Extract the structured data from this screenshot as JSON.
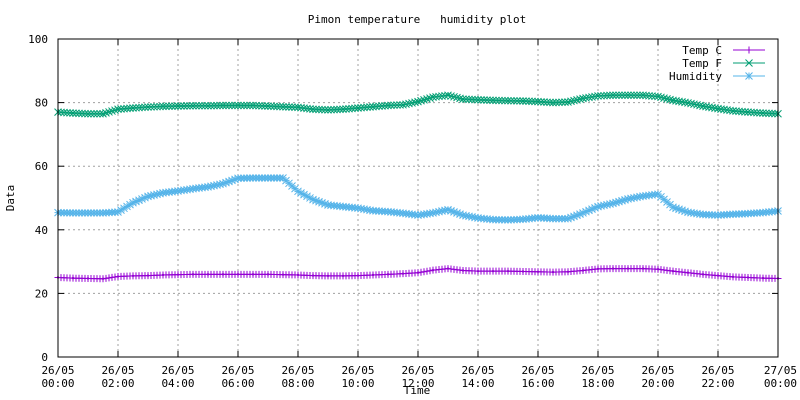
{
  "chart_data": {
    "type": "line",
    "title": "Pimon temperature   humidity plot",
    "xlabel": "Time",
    "ylabel": "Data",
    "xlim": [
      "26/05 00:00",
      "27/05 00:00"
    ],
    "ylim": [
      0,
      100
    ],
    "grid": true,
    "legend_position": "top-right",
    "x_ticks": [
      {
        "d": "26/05",
        "t": "00:00"
      },
      {
        "d": "26/05",
        "t": "02:00"
      },
      {
        "d": "26/05",
        "t": "04:00"
      },
      {
        "d": "26/05",
        "t": "06:00"
      },
      {
        "d": "26/05",
        "t": "08:00"
      },
      {
        "d": "26/05",
        "t": "10:00"
      },
      {
        "d": "26/05",
        "t": "12:00"
      },
      {
        "d": "26/05",
        "t": "14:00"
      },
      {
        "d": "26/05",
        "t": "16:00"
      },
      {
        "d": "26/05",
        "t": "18:00"
      },
      {
        "d": "26/05",
        "t": "20:00"
      },
      {
        "d": "26/05",
        "t": "22:00"
      },
      {
        "d": "27/05",
        "t": "00:00"
      }
    ],
    "y_ticks": [
      0,
      20,
      40,
      60,
      80,
      100
    ],
    "x": [
      "26/05 00:00",
      "26/05 00:30",
      "26/05 01:00",
      "26/05 01:30",
      "26/05 02:00",
      "26/05 02:30",
      "26/05 03:00",
      "26/05 03:30",
      "26/05 04:00",
      "26/05 04:30",
      "26/05 05:00",
      "26/05 05:30",
      "26/05 06:00",
      "26/05 06:30",
      "26/05 07:00",
      "26/05 07:30",
      "26/05 08:00",
      "26/05 08:30",
      "26/05 09:00",
      "26/05 09:30",
      "26/05 10:00",
      "26/05 10:30",
      "26/05 11:00",
      "26/05 11:30",
      "26/05 12:00",
      "26/05 12:30",
      "26/05 13:00",
      "26/05 13:30",
      "26/05 14:00",
      "26/05 14:30",
      "26/05 15:00",
      "26/05 15:30",
      "26/05 16:00",
      "26/05 16:30",
      "26/05 17:00",
      "26/05 17:30",
      "26/05 18:00",
      "26/05 18:30",
      "26/05 19:00",
      "26/05 19:30",
      "26/05 20:00",
      "26/05 20:30",
      "26/05 21:00",
      "26/05 21:30",
      "26/05 22:00",
      "26/05 22:30",
      "26/05 23:00",
      "26/05 23:30",
      "27/05 00:00"
    ],
    "series": [
      {
        "name": "Temp C",
        "color": "#9400d3",
        "marker": "plus",
        "values": [
          25.0,
          24.8,
          24.7,
          24.6,
          25.3,
          25.5,
          25.6,
          25.8,
          25.9,
          26.0,
          26.0,
          26.0,
          26.0,
          26.0,
          26.0,
          25.9,
          25.8,
          25.6,
          25.5,
          25.5,
          25.6,
          25.8,
          26.0,
          26.2,
          26.5,
          27.3,
          27.8,
          27.2,
          27.0,
          27.0,
          27.0,
          26.9,
          26.8,
          26.7,
          26.8,
          27.2,
          27.7,
          27.8,
          27.8,
          27.8,
          27.6,
          27.0,
          26.5,
          26.0,
          25.6,
          25.2,
          25.0,
          24.8,
          24.7
        ]
      },
      {
        "name": "Temp F",
        "color": "#009e73",
        "marker": "cross",
        "values": [
          77.0,
          76.7,
          76.5,
          76.5,
          77.9,
          78.3,
          78.6,
          78.8,
          78.9,
          79.0,
          79.0,
          79.1,
          79.1,
          79.1,
          78.9,
          78.7,
          78.5,
          77.9,
          77.7,
          77.9,
          78.3,
          78.7,
          79.1,
          79.3,
          80.3,
          81.7,
          82.3,
          81.1,
          80.9,
          80.7,
          80.6,
          80.5,
          80.3,
          80.0,
          80.2,
          81.3,
          82.1,
          82.3,
          82.3,
          82.3,
          81.9,
          80.7,
          79.9,
          78.9,
          78.1,
          77.4,
          77.0,
          76.7,
          76.5
        ]
      },
      {
        "name": "Humidity",
        "color": "#56b4e9",
        "marker": "star",
        "values": [
          45.4,
          45.3,
          45.3,
          45.3,
          45.6,
          48.5,
          50.5,
          51.6,
          52.2,
          52.9,
          53.5,
          54.5,
          56.2,
          56.3,
          56.3,
          56.3,
          52.1,
          49.5,
          47.8,
          47.3,
          46.8,
          46.0,
          45.7,
          45.2,
          44.6,
          45.3,
          46.3,
          44.6,
          43.7,
          43.2,
          43.1,
          43.3,
          43.8,
          43.5,
          43.5,
          45.3,
          47.3,
          48.3,
          49.7,
          50.6,
          51.2,
          47.1,
          45.5,
          44.8,
          44.6,
          44.9,
          45.1,
          45.4,
          45.9
        ]
      }
    ]
  }
}
